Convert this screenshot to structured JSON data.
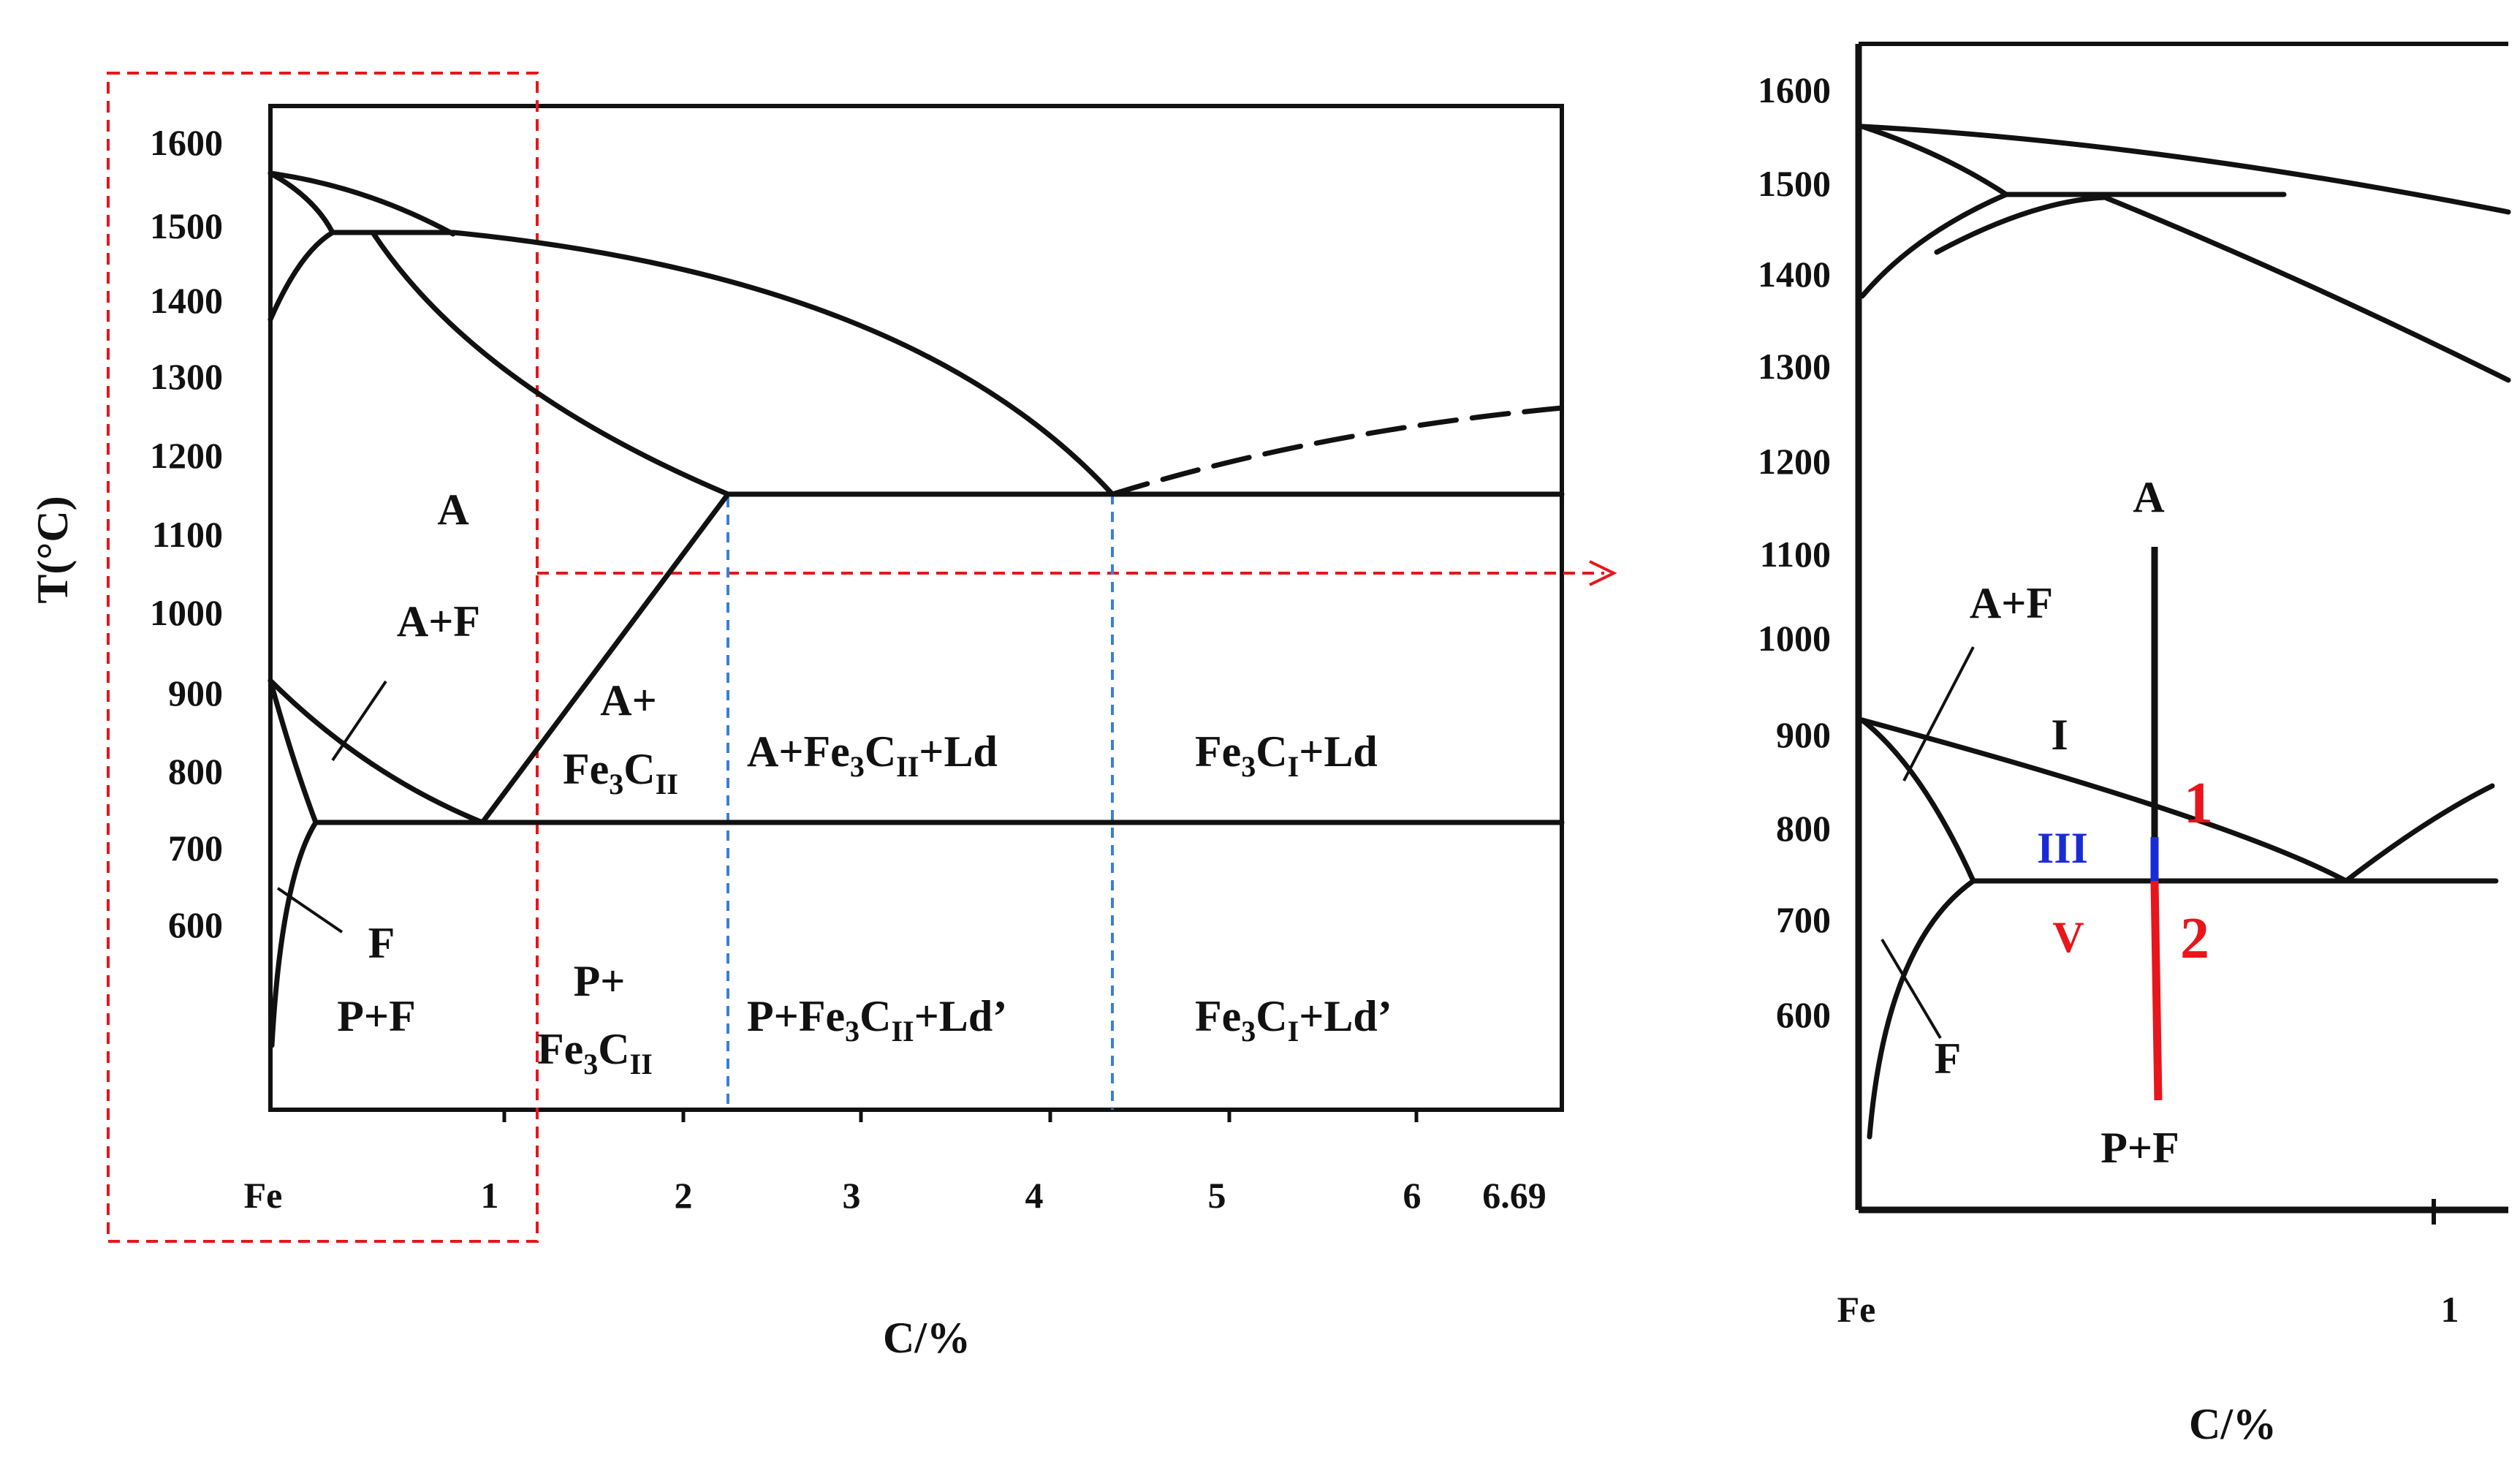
{
  "colors": {
    "line": "#111111",
    "marker_red": "#e8151b",
    "marker_blue": "#1a2bd6",
    "dashed_blue": "#3a7fd8",
    "dashed_red": "#e8151b"
  },
  "main_diagram": {
    "y_axis_title": "T(°C)",
    "x_axis_title": "C/%",
    "y_ticks": [
      "1600",
      "1500",
      "1400",
      "1300",
      "1200",
      "1100",
      "1000",
      "900",
      "800",
      "700",
      "600"
    ],
    "x_ticks": [
      "Fe",
      "1",
      "2",
      "3",
      "4",
      "5",
      "6",
      "6.69"
    ],
    "regions": {
      "a": "A",
      "a_f": "A+F",
      "f": "F",
      "p_f": "P+F",
      "a_fe3c_top": "A+",
      "a_fe3c_base": "Fe",
      "a_fe3c_sub3": "3",
      "a_fe3c_c": "C",
      "a_fe3c_sub2": "II",
      "a_fe3c_ld_1": "A+Fe",
      "a_fe3c_ld_sub3": "3",
      "a_fe3c_ld_c": "C",
      "a_fe3c_ld_sub2": "II",
      "a_fe3c_ld_2": "+Ld",
      "fe3c1_ld_1": "Fe",
      "fe3c1_ld_sub3": "3",
      "fe3c1_ld_c": "C",
      "fe3c1_ld_sub1": "I",
      "fe3c1_ld_2": "+Ld",
      "p_fe3c_top": "P+",
      "p_fe3c_base": "Fe",
      "p_fe3c_sub3": "3",
      "p_fe3c_c": "C",
      "p_fe3c_sub2": "II",
      "p_fe3c_ld_1": "P+Fe",
      "p_fe3c_ld_sub3": "3",
      "p_fe3c_ld_c": "C",
      "p_fe3c_ld_sub2": "II",
      "p_fe3c_ld_2": "+Ld’",
      "fe3c1_ldp_1": "Fe",
      "fe3c1_ldp_sub3": "3",
      "fe3c1_ldp_c": "C",
      "fe3c1_ldp_sub1": "I",
      "fe3c1_ldp_2": "+Ld’"
    }
  },
  "zoom_diagram": {
    "x_axis_title": "C/%",
    "y_ticks": [
      "1600",
      "1500",
      "1400",
      "1300",
      "1200",
      "1100",
      "1000",
      "900",
      "800",
      "700",
      "600"
    ],
    "x_ticks": [
      "Fe",
      "1"
    ],
    "labels": {
      "a": "A",
      "a_f": "A+F",
      "f": "F",
      "p_f": "P+F",
      "region_i": "I",
      "region_iii": "III",
      "region_v": "V",
      "point_1": "1",
      "point_2": "2"
    }
  }
}
